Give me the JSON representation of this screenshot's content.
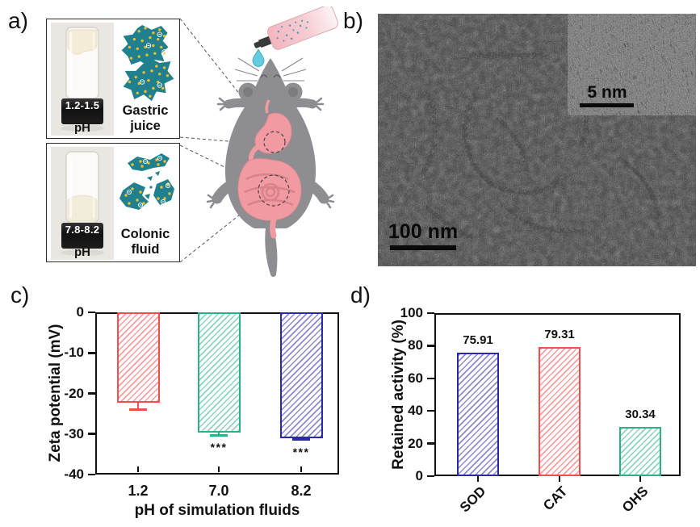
{
  "figure": {
    "panel_labels": {
      "a": "a)",
      "b": "b)",
      "c": "c)",
      "d": "d)"
    }
  },
  "panel_a": {
    "gastric": {
      "ph_range": "1.2-1.5",
      "ph_label": "pH",
      "caption": [
        "Gastric",
        "juice"
      ]
    },
    "colonic": {
      "ph_range": "7.8-8.2",
      "ph_label": "pH",
      "caption": [
        "Colonic",
        "fluid"
      ]
    }
  },
  "panel_b": {
    "scale_bar_main": "100 nm",
    "scale_bar_inset": "5 nm"
  },
  "chart_data": [
    {
      "id": "zeta-potential",
      "type": "bar",
      "title": "",
      "xlabel": "pH of simulation fluids",
      "ylabel": "Zeta potential (mV)",
      "categories": [
        "1.2",
        "7.0",
        "8.2"
      ],
      "values": [
        -22.2,
        -29.7,
        -31.0
      ],
      "errors": [
        1.8,
        0.6,
        0.4
      ],
      "significance": [
        "",
        "***",
        "***"
      ],
      "colors": [
        "#f04f4f",
        "#2fb187",
        "#2a2aa4"
      ],
      "hatch": "diagonal",
      "ylim": [
        -40,
        0
      ],
      "yticks": [
        0,
        -10,
        -20,
        -30,
        -40
      ],
      "grid": false,
      "legend": "none"
    },
    {
      "id": "retained-activity",
      "type": "bar",
      "title": "",
      "xlabel": "",
      "ylabel": "Retained activity (%)",
      "categories": [
        "SOD",
        "CAT",
        "OHS"
      ],
      "values": [
        75.91,
        79.31,
        30.34
      ],
      "value_labels": [
        "75.91",
        "79.31",
        "30.34"
      ],
      "colors": [
        "#2a2aa4",
        "#f04f4f",
        "#2fb187"
      ],
      "hatch": "diagonal",
      "ylim": [
        0,
        100
      ],
      "yticks": [
        0,
        20,
        40,
        60,
        80,
        100
      ],
      "grid": false,
      "legend": "none"
    }
  ]
}
